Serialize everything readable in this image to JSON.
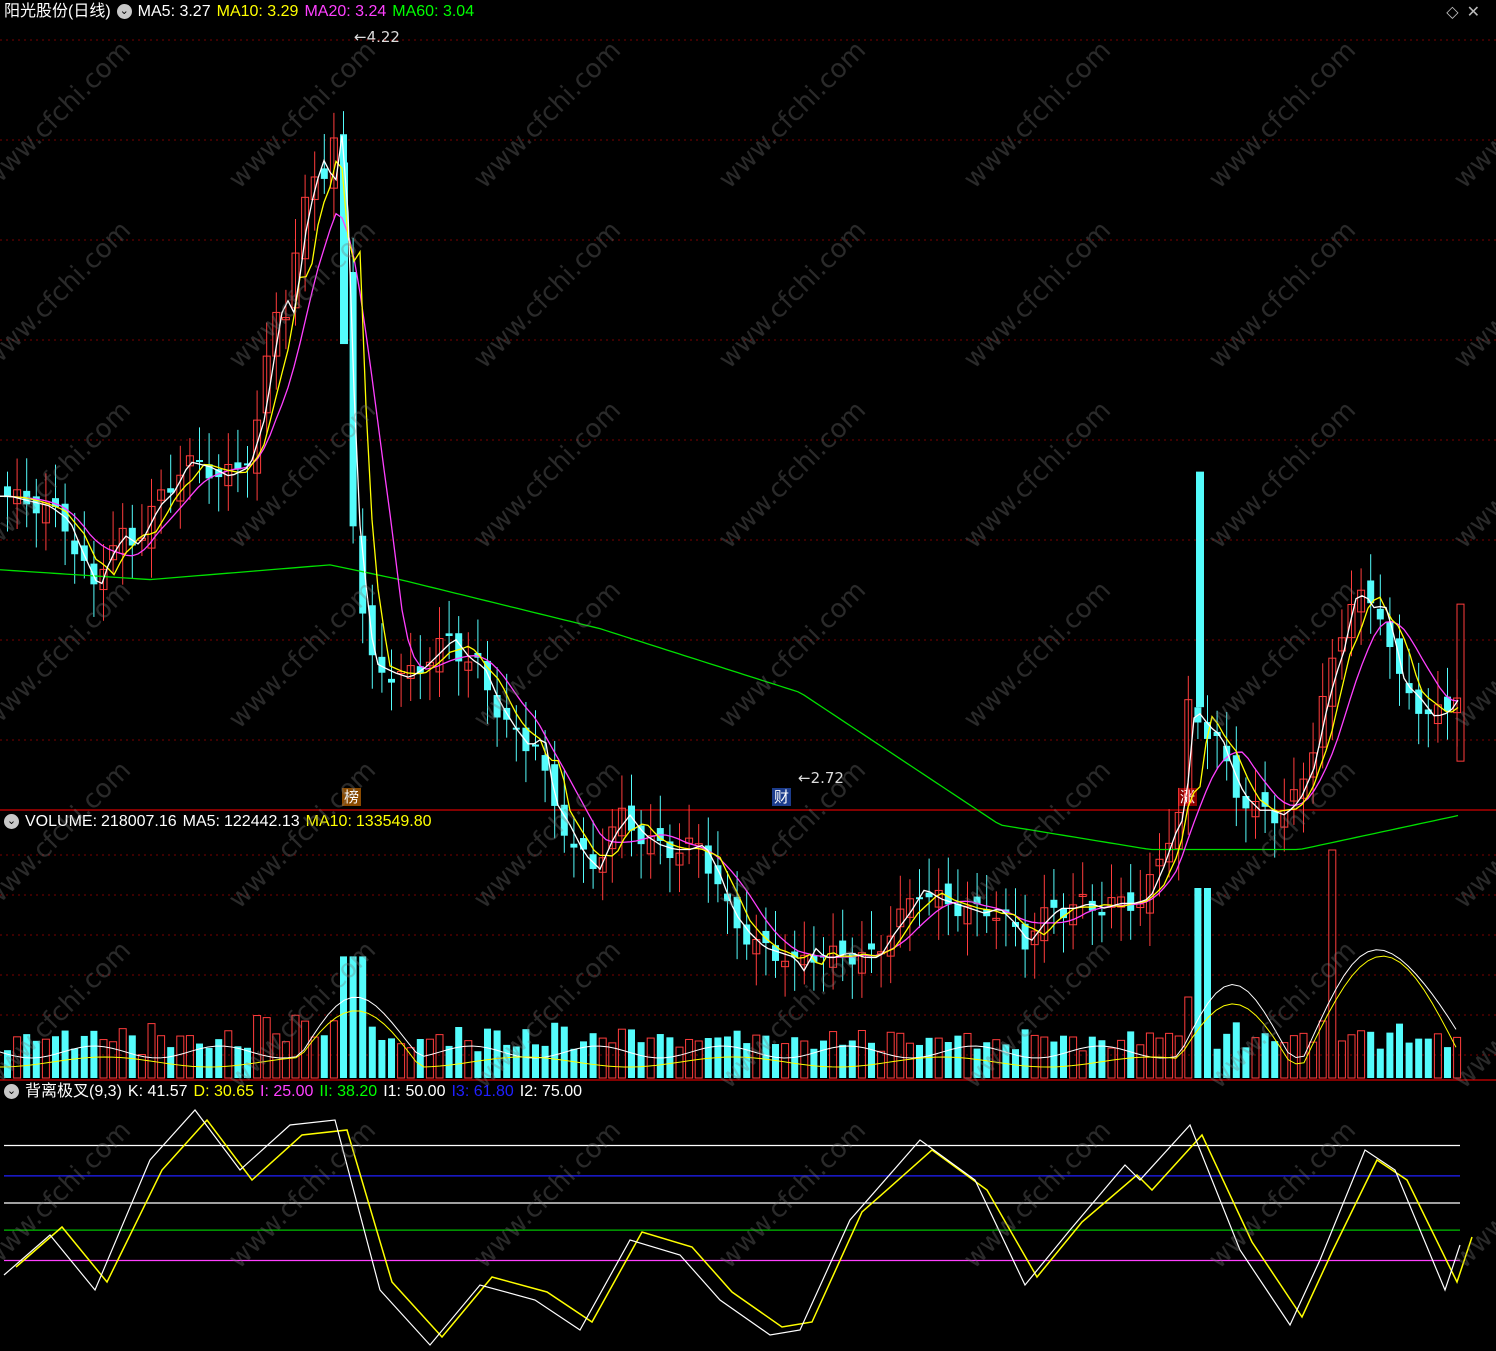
{
  "title": "阳光股份(日线)",
  "main_ma": [
    {
      "label": "MA5:",
      "value": "3.27",
      "color": "#ffffff"
    },
    {
      "label": "MA10:",
      "value": "3.29",
      "color": "#ffff00"
    },
    {
      "label": "MA20:",
      "value": "3.24",
      "color": "#ff40ff"
    },
    {
      "label": "MA60:",
      "value": "3.04",
      "color": "#00ff00"
    }
  ],
  "price_high": "4.22",
  "price_low": "2.72",
  "markers": {
    "bang": "榜",
    "cai": "财",
    "zhang": "涨"
  },
  "volume": {
    "label": "VOLUME:",
    "value": "218007.16",
    "ma5_label": "MA5:",
    "ma5": "122442.13",
    "ma10_label": "MA10:",
    "ma10": "133549.80"
  },
  "indicator": {
    "name": "背离极叉(9,3)",
    "items": [
      {
        "label": "K:",
        "value": "41.57",
        "color": "#ffffff"
      },
      {
        "label": "D:",
        "value": "30.65",
        "color": "#ffff00"
      },
      {
        "label": "I:",
        "value": "25.00",
        "color": "#ff40ff"
      },
      {
        "label": "II:",
        "value": "38.20",
        "color": "#00ff00"
      },
      {
        "label": "I1:",
        "value": "50.00",
        "color": "#ffffff"
      },
      {
        "label": "I3:",
        "value": "61.80",
        "color": "#2020ff"
      },
      {
        "label": "I2:",
        "value": "75.00",
        "color": "#ffffff"
      }
    ]
  },
  "watermark": "www.cfchi.com",
  "colors": {
    "up": "#ff3c3c",
    "down": "#54fcfc",
    "ma5": "#ffffff",
    "ma10": "#ffff00",
    "ma20": "#ff40ff",
    "ma60": "#00e000",
    "grid": "#7a0000",
    "divider": "#b00000"
  }
}
